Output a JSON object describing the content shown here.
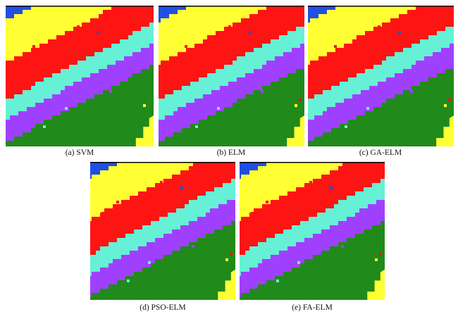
{
  "figure": {
    "panels": [
      {
        "id": "svm",
        "caption": "(a) SVM"
      },
      {
        "id": "elm",
        "caption": "(b) ELM"
      },
      {
        "id": "ga-elm",
        "caption": "(c) GA-ELM"
      },
      {
        "id": "pso-elm",
        "caption": "(d) PSO-ELM"
      },
      {
        "id": "fa-elm",
        "caption": "(e) FA-ELM"
      }
    ],
    "class_colors": {
      "blue": "#1f4fe6",
      "yellow": "#ffff33",
      "red": "#ff1414",
      "cyan": "#66f0d6",
      "purple": "#a040ff",
      "green": "#208a1a"
    }
  }
}
